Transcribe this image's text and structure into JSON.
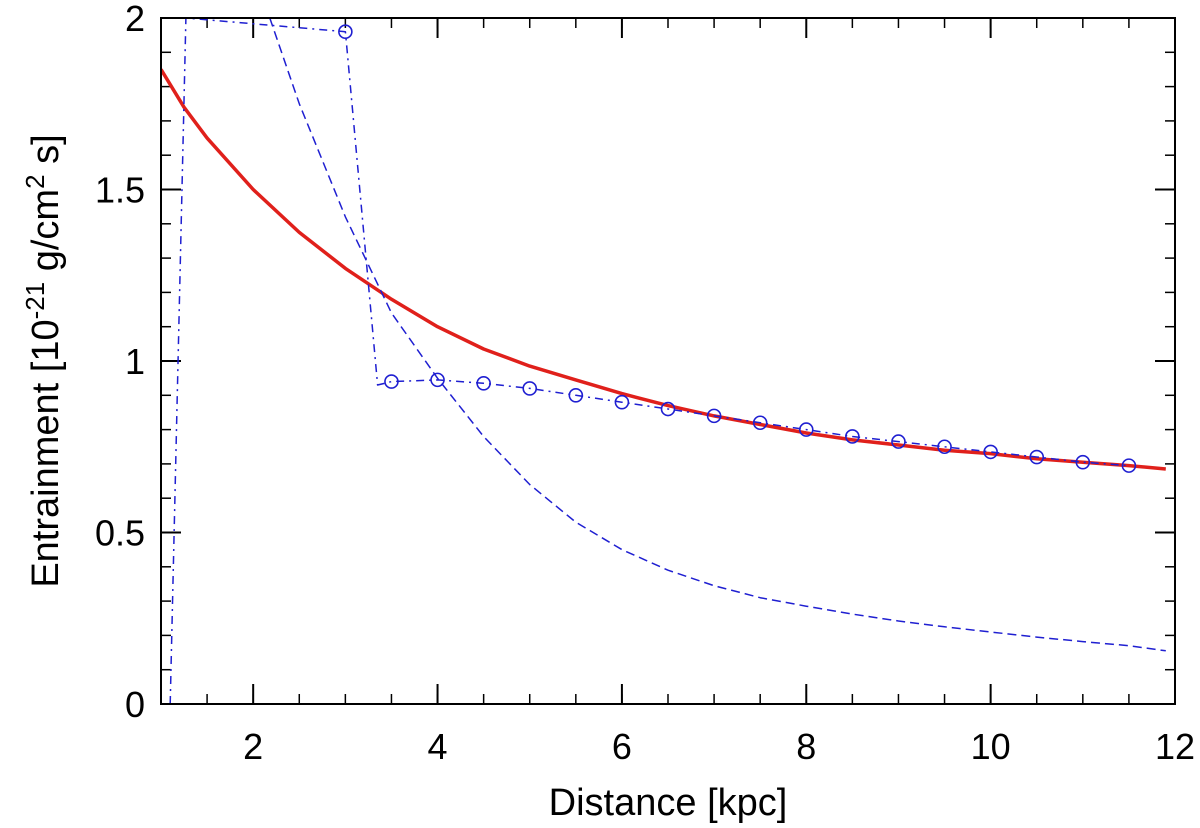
{
  "chart_data": {
    "type": "line",
    "xlabel": "Distance [kpc]",
    "ylabel": {
      "prefix": "Entrainment [10",
      "exp1": "-21",
      "mid": " g/cm",
      "exp2": "2",
      "suffix": " s]"
    },
    "xlim": [
      1,
      12
    ],
    "ylim": [
      0,
      2
    ],
    "x_ticks": [
      2,
      4,
      6,
      8,
      10,
      12
    ],
    "y_ticks": [
      0,
      0.5,
      1,
      1.5,
      2
    ],
    "x_tick_labels": [
      "2",
      "4",
      "6",
      "8",
      "10",
      "12"
    ],
    "y_tick_labels": [
      "0",
      "0.5",
      "1",
      "1.5",
      "2"
    ],
    "grid": false,
    "series": [
      {
        "style": "solid",
        "color": "#e0201b",
        "x": [
          1.0,
          1.25,
          1.5,
          2.0,
          2.5,
          3.0,
          3.5,
          4.0,
          4.5,
          5.0,
          5.5,
          6.0,
          6.5,
          7.0,
          7.5,
          8.0,
          8.5,
          9.0,
          9.5,
          10.0,
          10.5,
          11.0,
          11.5,
          11.9
        ],
        "y": [
          1.85,
          1.74,
          1.65,
          1.5,
          1.375,
          1.27,
          1.18,
          1.1,
          1.035,
          0.985,
          0.945,
          0.905,
          0.87,
          0.84,
          0.815,
          0.79,
          0.77,
          0.755,
          0.74,
          0.73,
          0.715,
          0.705,
          0.695,
          0.685
        ]
      },
      {
        "style": "dashed",
        "color": "#1f1fd1",
        "x": [
          2.18,
          2.5,
          3.0,
          3.5,
          4.0,
          4.5,
          5.0,
          5.5,
          6.0,
          6.5,
          7.0,
          7.5,
          8.0,
          8.5,
          9.0,
          9.5,
          10.0,
          10.5,
          11.0,
          11.5,
          11.9
        ],
        "y": [
          2.0,
          1.75,
          1.42,
          1.14,
          0.95,
          0.78,
          0.64,
          0.53,
          0.45,
          0.39,
          0.345,
          0.31,
          0.285,
          0.262,
          0.242,
          0.225,
          0.21,
          0.195,
          0.182,
          0.17,
          0.155
        ]
      },
      {
        "style": "dashdot-markers",
        "color": "#1f1fd1",
        "x": [
          1.1,
          1.27,
          3.0,
          3.35,
          3.5,
          4.0,
          4.5,
          5.0,
          5.5,
          6.0,
          6.5,
          7.0,
          7.5,
          8.0,
          8.5,
          9.0,
          9.5,
          10.0,
          10.5,
          11.0,
          11.5
        ],
        "y": [
          0.0,
          2.0,
          1.96,
          0.93,
          0.94,
          0.945,
          0.935,
          0.92,
          0.9,
          0.88,
          0.86,
          0.84,
          0.82,
          0.8,
          0.78,
          0.765,
          0.75,
          0.735,
          0.72,
          0.705,
          0.695
        ],
        "marker_x": [
          3.0,
          3.5,
          4.0,
          4.5,
          5.0,
          5.5,
          6.0,
          6.5,
          7.0,
          7.5,
          8.0,
          8.5,
          9.0,
          9.5,
          10.0,
          10.5,
          11.0,
          11.5
        ],
        "marker_y": [
          1.96,
          0.94,
          0.945,
          0.935,
          0.92,
          0.9,
          0.88,
          0.86,
          0.84,
          0.82,
          0.8,
          0.78,
          0.765,
          0.75,
          0.735,
          0.72,
          0.705,
          0.695
        ]
      }
    ]
  }
}
